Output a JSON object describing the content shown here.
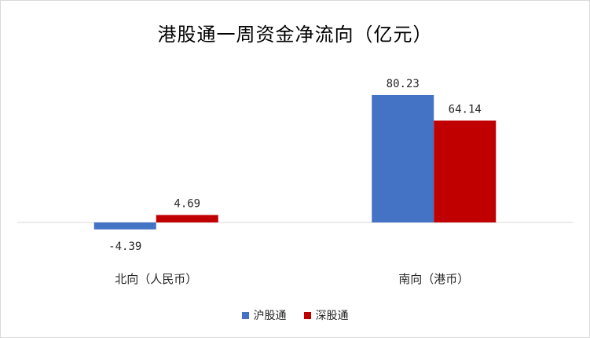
{
  "chart_data": {
    "type": "bar",
    "title": "港股通一周资金净流向（亿元）",
    "categories": [
      "北向（人民币）",
      "南向（港币）"
    ],
    "series": [
      {
        "name": "沪股通",
        "color": "#4472c4",
        "values": [
          -4.39,
          80.23
        ],
        "labels": [
          "-4.39",
          "80.23"
        ]
      },
      {
        "name": "深股通",
        "color": "#c00000",
        "values": [
          4.69,
          64.14
        ],
        "labels": [
          "4.69",
          "64.14"
        ]
      }
    ],
    "ylim": [
      -10,
      90
    ],
    "xlabel": "",
    "ylabel": "",
    "grid": false,
    "legend": "bottom"
  }
}
